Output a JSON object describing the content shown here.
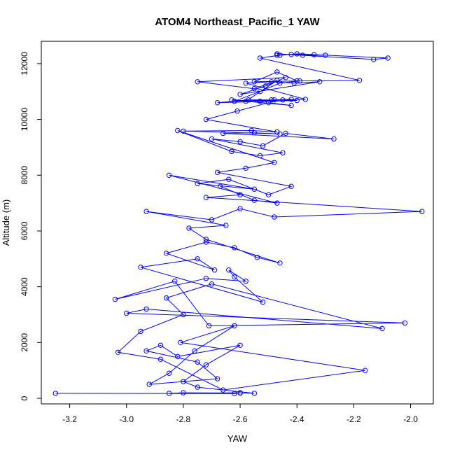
{
  "chart_data": {
    "type": "line",
    "title": "ATOM4 Northeast_Pacific_1 YAW",
    "xlabel": "YAW",
    "ylabel": "Altitude (m)",
    "xlim": [
      -3.3,
      -1.92
    ],
    "ylim": [
      -200,
      12800
    ],
    "x_ticks": [
      -3.2,
      -3.0,
      -2.8,
      -2.6,
      -2.4,
      -2.2,
      -2.0
    ],
    "y_ticks": [
      0,
      2000,
      4000,
      6000,
      8000,
      10000,
      12000
    ],
    "x_tick_labels": [
      "-3.2",
      "-3.0",
      "-2.8",
      "-2.6",
      "-2.4",
      "-2.2",
      "-2.0"
    ],
    "y_tick_labels": [
      "0",
      "2000",
      "4000",
      "6000",
      "8000",
      "10000",
      "12000"
    ],
    "markers": "open-circle",
    "colors": {
      "series": "#0000ff",
      "axes": "#000000"
    },
    "series": [
      {
        "x": [
          -3.25,
          -2.62,
          -2.6,
          -2.85,
          -2.8,
          -2.6,
          -2.55,
          -2.75,
          -2.8,
          -2.72,
          -2.6,
          -2.82,
          -2.88,
          -2.93,
          -2.75,
          -2.68,
          -2.92,
          -2.85,
          -2.76,
          -2.62,
          -2.81,
          -2.16,
          -2.66,
          -2.88,
          -3.03,
          -2.95,
          -2.8,
          -2.86,
          -2.7,
          -2.1,
          -2.93,
          -3.0,
          -2.02,
          -2.71,
          -2.83,
          -3.04,
          -2.72,
          -2.58,
          -2.64,
          -2.62,
          -2.52,
          -2.95,
          -2.75,
          -2.69,
          -2.86,
          -2.72,
          -2.62,
          -2.54,
          -2.46,
          -2.72,
          -2.78,
          -2.65,
          -2.93,
          -2.7,
          -2.6,
          -2.48,
          -1.96,
          -2.72,
          -2.6,
          -2.67,
          -2.55,
          -2.47,
          -2.85,
          -2.55,
          -2.75,
          -2.64,
          -2.5,
          -2.42,
          -2.68,
          -2.58,
          -2.48,
          -2.82,
          -2.63,
          -2.53,
          -2.45,
          -2.7,
          -2.6,
          -2.52,
          -2.44,
          -2.27,
          -2.66,
          -2.55,
          -2.46,
          -2.8,
          -2.56,
          -2.47,
          -2.72,
          -2.61,
          -2.5,
          -2.42,
          -2.63,
          -2.53,
          -2.45,
          -2.37,
          -2.58,
          -2.49,
          -2.41,
          -2.32,
          -2.6,
          -2.51,
          -2.44,
          -2.75,
          -2.55,
          -2.47,
          -2.58,
          -2.48,
          -2.4,
          -2.68,
          -2.57,
          -2.49,
          -2.42,
          -2.62,
          -2.53,
          -2.46,
          -2.39,
          -2.55,
          -2.47,
          -2.4,
          -2.18,
          -2.53,
          -2.46,
          -2.4,
          -2.08,
          -2.13,
          -2.47,
          -2.38,
          -2.3,
          -2.34,
          -2.42,
          -2.47
        ],
        "y": [
          180,
          170,
          200,
          180,
          200,
          190,
          180,
          400,
          600,
          1200,
          1900,
          1500,
          1900,
          1700,
          1300,
          700,
          500,
          900,
          1700,
          2600,
          2000,
          1000,
          300,
          1400,
          1650,
          2400,
          3000,
          3600,
          4100,
          2500,
          3200,
          3050,
          2700,
          2600,
          4200,
          3550,
          4300,
          4200,
          4600,
          4350,
          3450,
          4700,
          5000,
          4600,
          5200,
          5600,
          5400,
          5050,
          4850,
          5700,
          6100,
          6200,
          6700,
          6400,
          6800,
          6500,
          6700,
          7200,
          7300,
          7600,
          7100,
          7000,
          8000,
          7500,
          7700,
          7850,
          7300,
          7600,
          8100,
          8250,
          8450,
          9600,
          8850,
          8700,
          8800,
          9300,
          9200,
          9050,
          9500,
          9300,
          9500,
          9520,
          9480,
          9580,
          9600,
          9550,
          10000,
          10300,
          10600,
          10500,
          10700,
          10650,
          10700,
          10720,
          11300,
          11350,
          11300,
          11350,
          10900,
          11200,
          11500,
          11350,
          11100,
          11400,
          10650,
          10700,
          10680,
          10600,
          10700,
          10700,
          10720,
          10650,
          11000,
          11300,
          11380,
          11350,
          11700,
          11380,
          11400,
          12200,
          12300,
          12350,
          12200,
          12150,
          12350,
          12300,
          12300,
          12320,
          12330,
          12300
        ]
      }
    ]
  }
}
